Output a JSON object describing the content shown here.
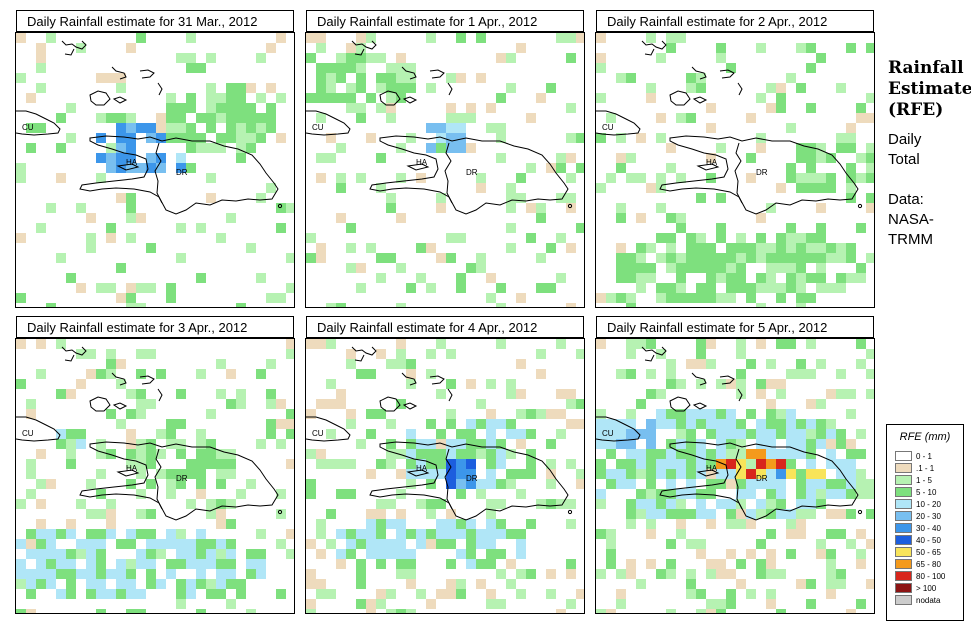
{
  "panels": [
    {
      "title": "Daily Rainfall estimate for  31 Mar., 2012"
    },
    {
      "title": "Daily Rainfall estimate for  1 Apr., 2012"
    },
    {
      "title": "Daily Rainfall estimate for  2 Apr., 2012"
    },
    {
      "title": "Daily Rainfall estimate for  3 Apr., 2012"
    },
    {
      "title": "Daily Rainfall estimate for  4 Apr., 2012"
    },
    {
      "title": "Daily Rainfall estimate for  5 Apr., 2012"
    }
  ],
  "map_labels": {
    "cu": "CU",
    "ha": "HA",
    "dr": "DR"
  },
  "side": {
    "title_line1": "Rainfall",
    "title_line2": "Estimate",
    "title_line3": "(RFE)",
    "daily": "Daily",
    "total": "Total",
    "data_label": "Data:",
    "data_source_1": "NASA-",
    "data_source_2": "TRMM"
  },
  "legend": {
    "title": "RFE (mm)",
    "items": [
      {
        "label": "0 - 1",
        "color": "#ffffff"
      },
      {
        "label": ".1 - 1",
        "color": "#eedbbd"
      },
      {
        "label": "1 - 5",
        "color": "#b6f2b2"
      },
      {
        "label": "5 - 10",
        "color": "#7ee07e"
      },
      {
        "label": "10 - 20",
        "color": "#b0e6f7"
      },
      {
        "label": "20 - 30",
        "color": "#78bff0"
      },
      {
        "label": "30 - 40",
        "color": "#3c96ea"
      },
      {
        "label": "40 - 50",
        "color": "#1c5ede"
      },
      {
        "label": "50 - 65",
        "color": "#f8e45a"
      },
      {
        "label": "65 - 80",
        "color": "#f49a1c"
      },
      {
        "label": "80 - 100",
        "color": "#d8261c"
      },
      {
        "label": "> 100",
        "color": "#8c1414"
      },
      {
        "label": "nodata",
        "color": "#cccccc"
      }
    ]
  }
}
